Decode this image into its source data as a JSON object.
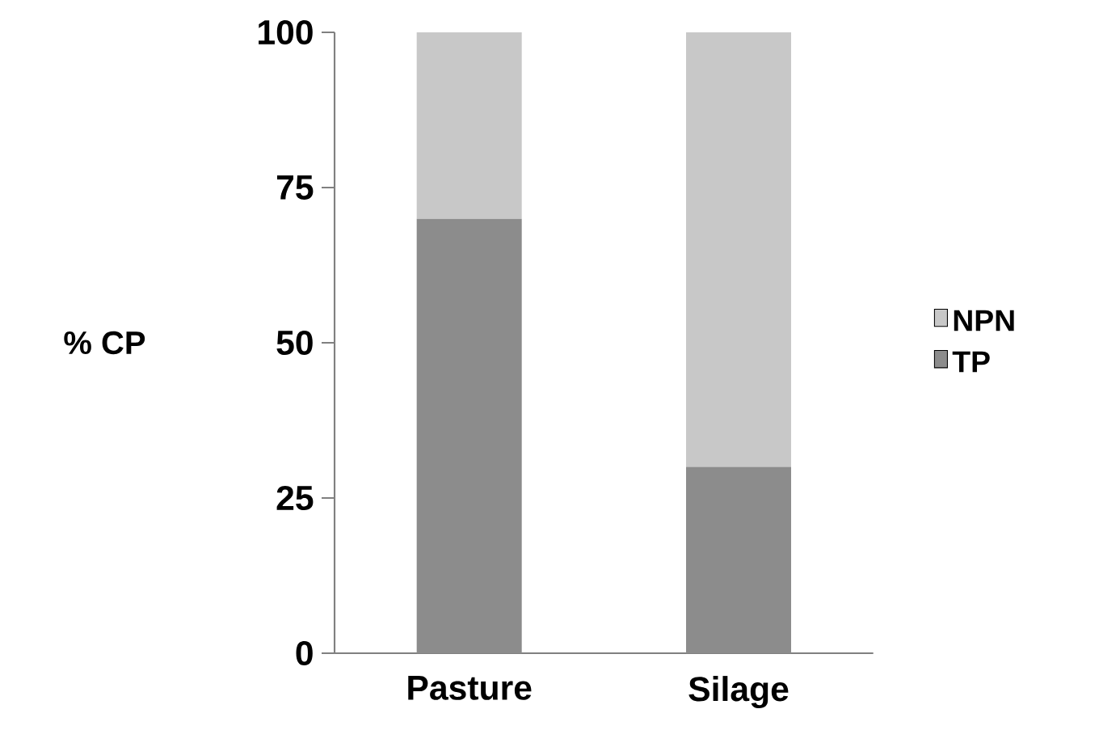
{
  "chart_data": {
    "type": "bar",
    "stacked": true,
    "ylabel": "% CP",
    "categories": [
      "Pasture",
      "Silage"
    ],
    "series": [
      {
        "name": "TP",
        "color": "#8c8c8c",
        "values": [
          70,
          30
        ]
      },
      {
        "name": "NPN",
        "color": "#c8c8c8",
        "values": [
          30,
          70
        ]
      }
    ],
    "ylim": [
      0,
      100
    ],
    "yticks": [
      0,
      25,
      50,
      75,
      100
    ],
    "legend": "right"
  }
}
